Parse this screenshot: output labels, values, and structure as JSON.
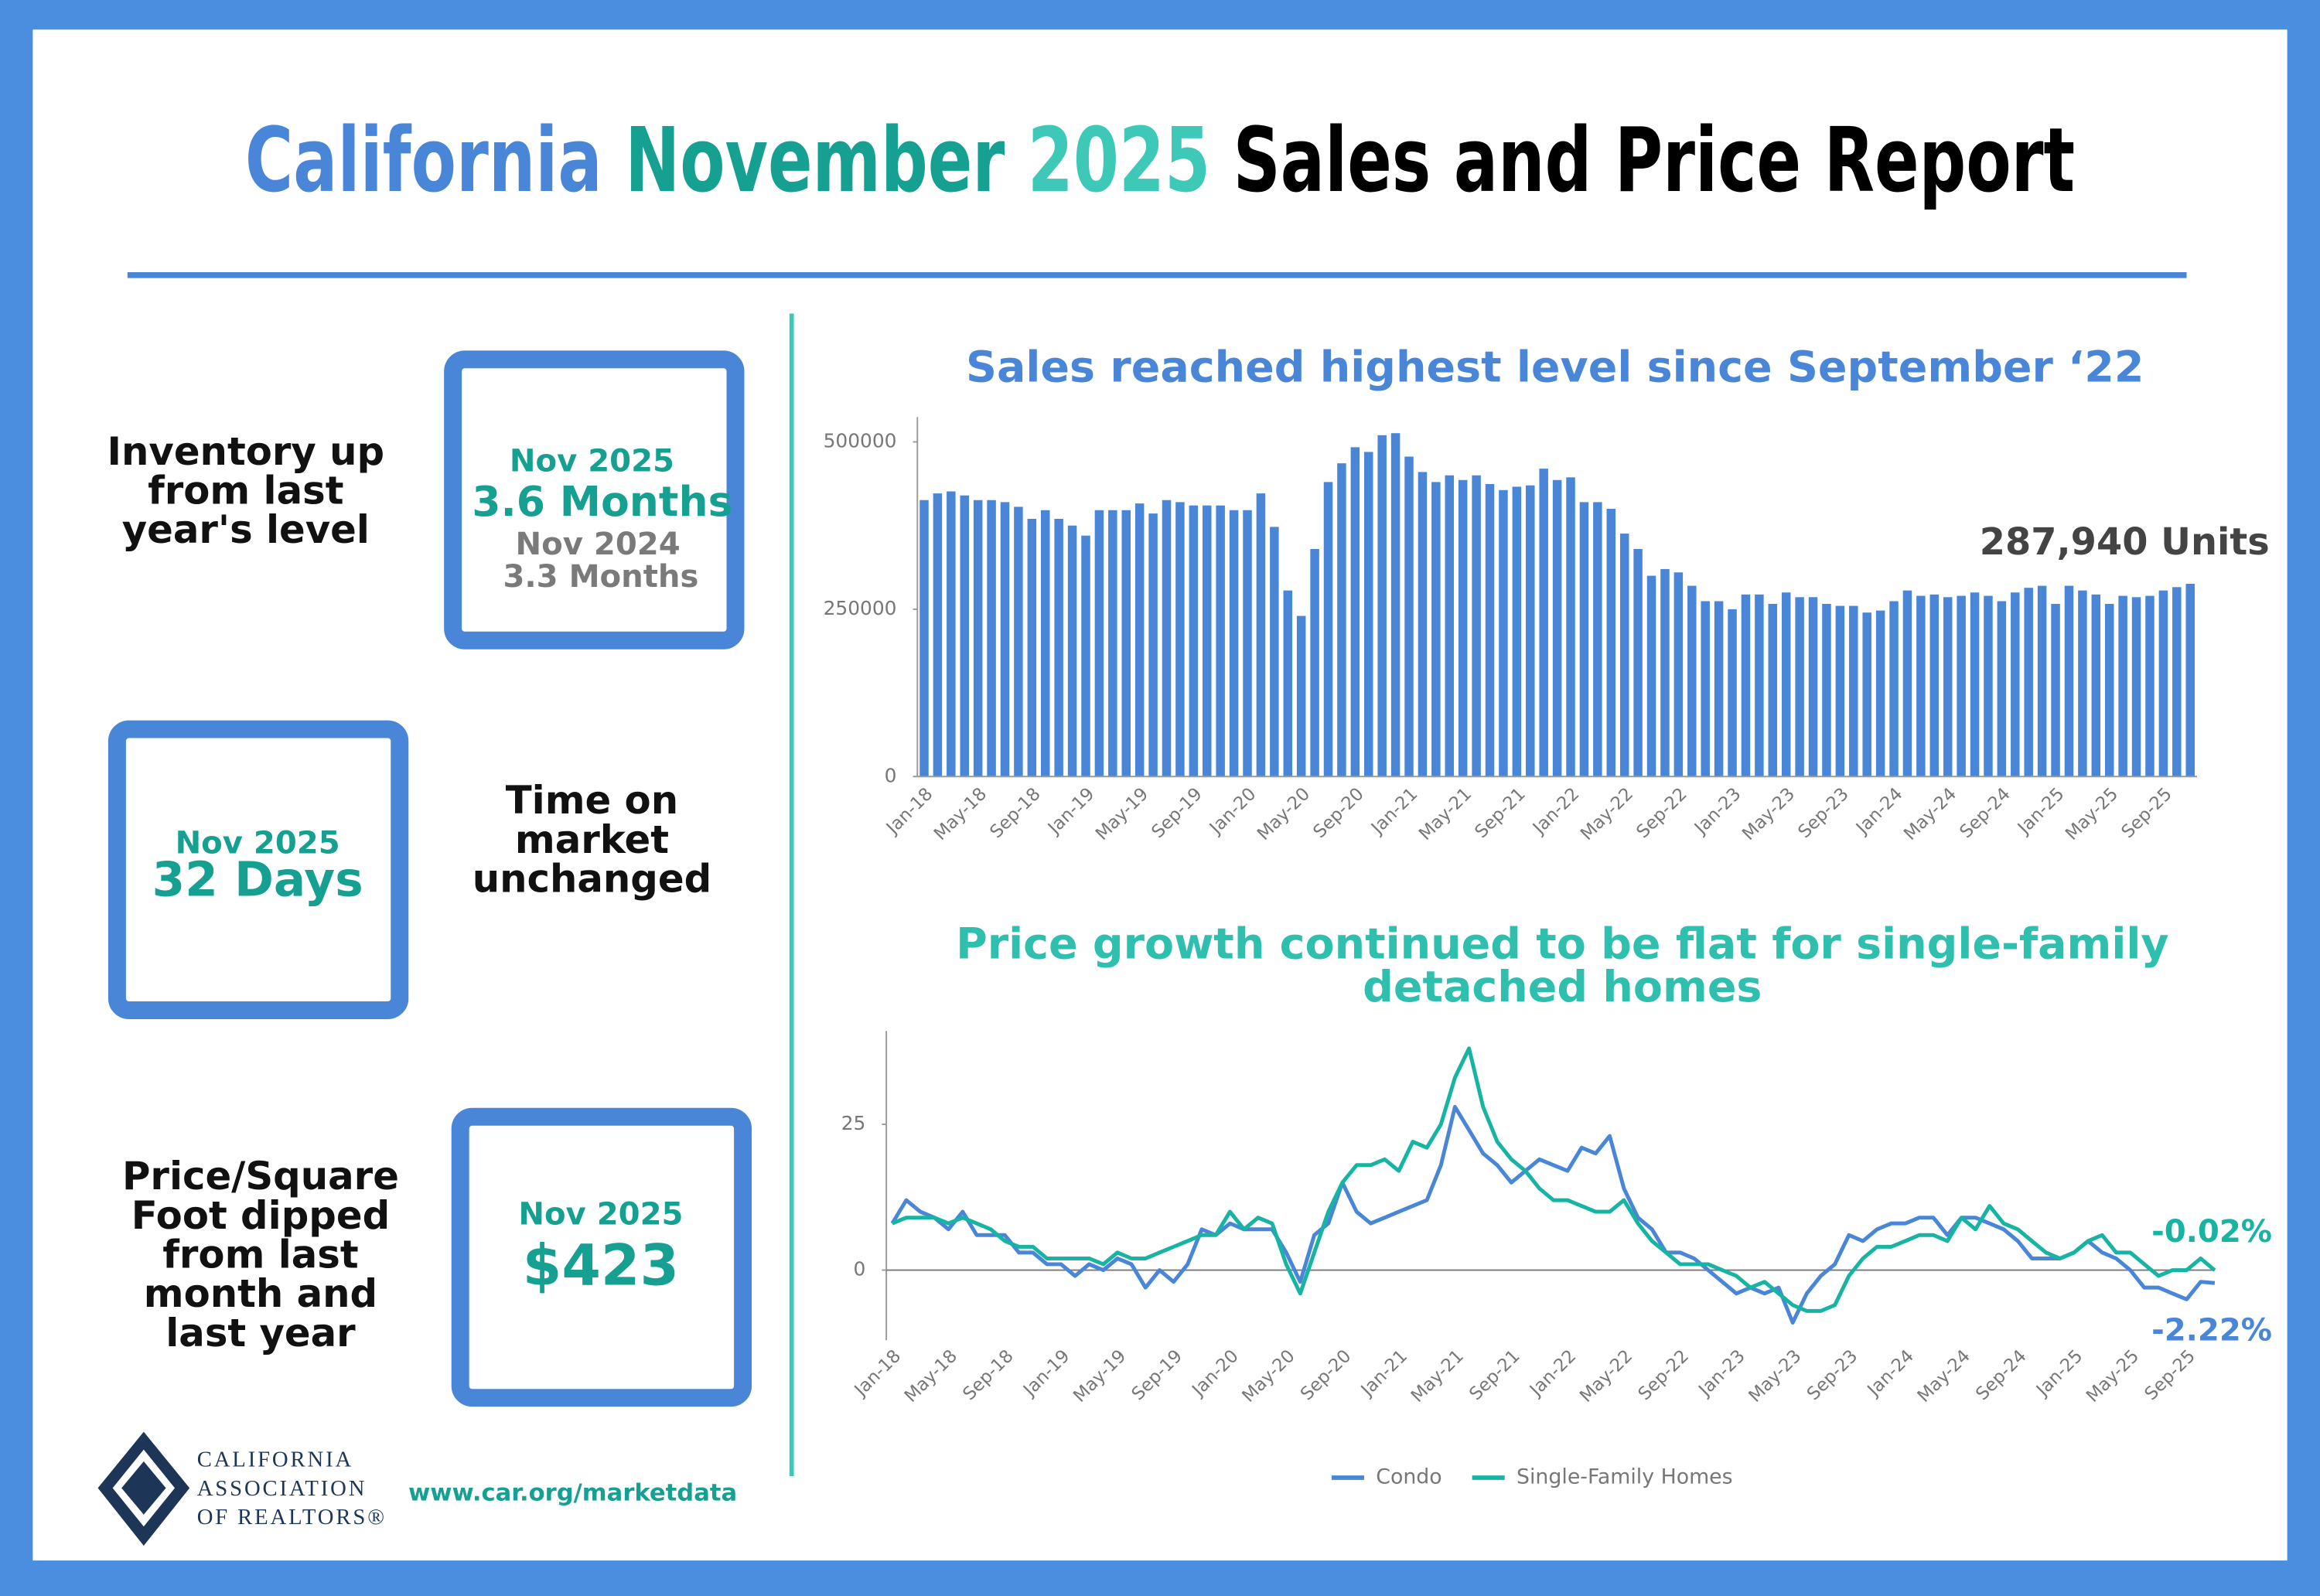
{
  "header": {
    "title_parts": [
      {
        "text": "California",
        "color": "#4a86d8"
      },
      {
        "text": "November",
        "color": "#16a092"
      },
      {
        "text": "2025",
        "color": "#3ec8b8"
      },
      {
        "text": "Sales and Price Report",
        "color": "#000000"
      }
    ]
  },
  "inventory": {
    "label": [
      "Inventory up",
      "from last",
      "year's level"
    ],
    "current_period": "Nov 2025",
    "current_value": "3.6 Months",
    "prior_period": "Nov 2024",
    "prior_value": "3.3 Months"
  },
  "time_on_market": {
    "label": [
      "Time on",
      "market",
      "unchanged"
    ],
    "current_period": "Nov 2025",
    "current_value": "32 Days"
  },
  "price_per_sqft": {
    "label": [
      "Price/Square",
      "Foot dipped",
      "from last",
      "month and",
      "last year"
    ],
    "current_period": "Nov 2025",
    "current_value": "$423"
  },
  "footer": {
    "logo": [
      "CALIFORNIA",
      "ASSOCIATION",
      "OF REALTORS®"
    ],
    "url": "www.car.org/marketdata"
  },
  "chart_data": [
    {
      "type": "bar",
      "title": "Sales reached highest level since September ‘22",
      "annotation": "287,940 Units",
      "color": "#4a86d8",
      "categories": [
        "Jan-18",
        null,
        null,
        null,
        "May-18",
        null,
        null,
        null,
        "Sep-18",
        null,
        null,
        null,
        "Jan-19",
        null,
        null,
        null,
        "May-19",
        null,
        null,
        null,
        "Sep-19",
        null,
        null,
        null,
        "Jan-20",
        null,
        null,
        null,
        "May-20",
        null,
        null,
        null,
        "Sep-20",
        null,
        null,
        null,
        "Jan-21",
        null,
        null,
        null,
        "May-21",
        null,
        null,
        null,
        "Sep-21",
        null,
        null,
        null,
        "Jan-22",
        null,
        null,
        null,
        "May-22",
        null,
        null,
        null,
        "Sep-22",
        null,
        null,
        null,
        "Jan-23",
        null,
        null,
        null,
        "May-23",
        null,
        null,
        null,
        "Sep-23",
        null,
        null,
        null,
        "Jan-24",
        null,
        null,
        null,
        "May-24",
        null,
        null,
        null,
        "Sep-24",
        null,
        null,
        null,
        "Jan-25",
        null,
        null,
        null,
        "May-25",
        null,
        null,
        null,
        "Sep-25",
        null,
        null
      ],
      "values": [
        413000,
        423000,
        426000,
        420000,
        413000,
        413000,
        410000,
        403000,
        385000,
        398000,
        385000,
        375000,
        360000,
        398000,
        398000,
        398000,
        408000,
        393000,
        413000,
        410000,
        405000,
        405000,
        405000,
        398000,
        398000,
        423000,
        373000,
        278000,
        240000,
        340000,
        440000,
        468000,
        492000,
        485000,
        510000,
        513000,
        478000,
        455000,
        440000,
        450000,
        443000,
        450000,
        437000,
        428000,
        433000,
        435000,
        460000,
        443000,
        447000,
        410000,
        410000,
        400000,
        363000,
        340000,
        300000,
        310000,
        305000,
        285000,
        262000,
        262000,
        250000,
        272000,
        272000,
        258000,
        275000,
        268000,
        268000,
        258000,
        255000,
        255000,
        245000,
        248000,
        262000,
        278000,
        270000,
        272000,
        268000,
        270000,
        275000,
        270000,
        262000,
        275000,
        282000,
        285000,
        258000,
        285000,
        278000,
        272000,
        258000,
        270000,
        268000,
        270000,
        278000,
        283000,
        287940
      ],
      "ylim": [
        0,
        537000
      ],
      "yticks": [
        0,
        250000,
        500000
      ]
    },
    {
      "type": "line",
      "title": [
        "Price growth continued to be flat for single-family",
        "detached homes"
      ],
      "categories": [
        "Jan-18",
        null,
        null,
        null,
        "May-18",
        null,
        null,
        null,
        "Sep-18",
        null,
        null,
        null,
        "Jan-19",
        null,
        null,
        null,
        "May-19",
        null,
        null,
        null,
        "Sep-19",
        null,
        null,
        null,
        "Jan-20",
        null,
        null,
        null,
        "May-20",
        null,
        null,
        null,
        "Sep-20",
        null,
        null,
        null,
        "Jan-21",
        null,
        null,
        null,
        "May-21",
        null,
        null,
        null,
        "Sep-21",
        null,
        null,
        null,
        "Jan-22",
        null,
        null,
        null,
        "May-22",
        null,
        null,
        null,
        "Sep-22",
        null,
        null,
        null,
        "Jan-23",
        null,
        null,
        null,
        "May-23",
        null,
        null,
        null,
        "Sep-23",
        null,
        null,
        null,
        "Jan-24",
        null,
        null,
        null,
        "May-24",
        null,
        null,
        null,
        "Sep-24",
        null,
        null,
        null,
        "Jan-25",
        null,
        null,
        null,
        "May-25",
        null,
        null,
        null,
        "Sep-25",
        null,
        null
      ],
      "series": [
        {
          "name": "Condo",
          "color": "#4a86d8",
          "end_label": "-2.22%",
          "values": [
            8,
            12,
            10,
            9,
            7,
            10,
            6,
            6,
            6,
            3,
            3,
            1,
            1,
            -1,
            1,
            0,
            2,
            1,
            -3,
            0,
            -2,
            1,
            7,
            6,
            8,
            7,
            7,
            7,
            3,
            -2,
            6,
            8,
            15,
            10,
            8,
            9,
            10,
            11,
            12,
            18,
            28,
            24,
            20,
            18,
            15,
            17,
            19,
            18,
            17,
            21,
            20,
            23,
            14,
            9,
            7,
            3,
            3,
            2,
            0,
            -2,
            -4,
            -3,
            -4,
            -3,
            -9,
            -4,
            -1,
            1,
            6,
            5,
            7,
            8,
            8,
            9,
            9,
            6,
            9,
            9,
            8,
            7,
            5,
            2,
            2,
            2,
            3,
            5,
            3,
            2,
            0,
            -3,
            -3,
            -4,
            -5,
            -2,
            -2.22
          ]
        },
        {
          "name": "Single-Family Homes",
          "color": "#17b3a3",
          "end_label": "-0.02%",
          "values": [
            8,
            9,
            9,
            9,
            8,
            9,
            8,
            7,
            5,
            4,
            4,
            2,
            2,
            2,
            2,
            1,
            3,
            2,
            2,
            3,
            4,
            5,
            6,
            6,
            10,
            7,
            9,
            8,
            1,
            -4,
            3,
            10,
            15,
            18,
            18,
            19,
            17,
            22,
            21,
            25,
            33,
            38,
            28,
            22,
            19,
            17,
            14,
            12,
            12,
            11,
            10,
            10,
            12,
            8,
            5,
            3,
            1,
            1,
            1,
            0,
            -1,
            -3,
            -2,
            -4,
            -6,
            -7,
            -7,
            -6,
            -1,
            2,
            4,
            4,
            5,
            6,
            6,
            5,
            9,
            7,
            11,
            8,
            7,
            5,
            3,
            2,
            3,
            5,
            6,
            3,
            3,
            1,
            -1,
            0,
            0,
            2,
            -0.02
          ]
        }
      ],
      "ylim": [
        -12,
        41
      ],
      "yticks": [
        0,
        25
      ],
      "legend": "bottom"
    }
  ]
}
